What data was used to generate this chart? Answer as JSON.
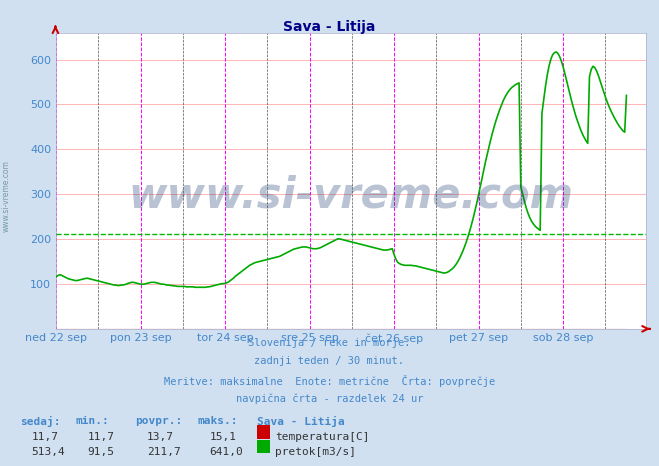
{
  "title": "Sava - Litija",
  "bg_color": "#d0e0f0",
  "plot_bg_color": "#ffffff",
  "grid_h_color": "#ffaaaa",
  "grid_v_color": "#ffaaaa",
  "vline_magenta": "#ff00ff",
  "vline_black": "#555555",
  "avg_line_color": "#00bb00",
  "avg_line_value": 211.7,
  "flow_line_color": "#00aa00",
  "temp_line_color": "#cc0000",
  "arrow_color": "#cc0000",
  "ylim": [
    0,
    660
  ],
  "yticks": [
    100,
    200,
    300,
    400,
    500,
    600
  ],
  "xlim": [
    0,
    335
  ],
  "total_points": 336,
  "points_per_day": 48,
  "x_tick_positions": [
    0,
    48,
    96,
    144,
    192,
    240,
    288
  ],
  "x_tick_labels": [
    "ned 22 sep",
    "pon 23 sep",
    "tor 24 sep",
    "sre 25 sep",
    "čet 26 sep",
    "pet 27 sep",
    "sob 28 sep"
  ],
  "magenta_vlines": [
    0,
    48,
    96,
    144,
    192,
    240,
    288,
    335
  ],
  "black_vlines": [
    24,
    72,
    120,
    168,
    216,
    264,
    312
  ],
  "title_color": "#000088",
  "title_fontsize": 10,
  "tick_color": "#4488cc",
  "tick_fontsize": 8,
  "watermark": "www.si-vreme.com",
  "watermark_color": "#1a3a6e",
  "watermark_alpha": 0.3,
  "watermark_fontsize": 30,
  "subtitle_color": "#4488cc",
  "subtitle_fontsize": 7.5,
  "subtitle_lines": [
    "Slovenija / reke in morje.",
    "zadnji teden / 30 minut.",
    "Meritve: maksimalne  Enote: metrične  Črta: povprečje",
    "navpična črta - razdelek 24 ur"
  ],
  "sivreme_color": "#7799aa",
  "sivreme_fontsize": 5.5,
  "table_header": [
    "sedaj:",
    "min.:",
    "povpr.:",
    "maks.:",
    "Sava - Litija"
  ],
  "table_row1": [
    "11,7",
    "11,7",
    "13,7",
    "15,1",
    "temperatura[C]"
  ],
  "table_row1_color": "#cc0000",
  "table_row2": [
    "513,4",
    "91,5",
    "211,7",
    "641,0",
    "pretok[m3/s]"
  ],
  "table_row2_color": "#00aa00",
  "table_color": "#333333",
  "table_header_color": "#4488cc",
  "table_fontsize": 8,
  "flow_data": [
    115,
    118,
    120,
    119,
    117,
    115,
    113,
    111,
    110,
    109,
    108,
    107,
    107,
    108,
    109,
    110,
    111,
    112,
    112,
    111,
    110,
    109,
    108,
    107,
    106,
    105,
    104,
    103,
    102,
    101,
    100,
    99,
    98,
    97,
    97,
    96,
    96,
    97,
    97,
    98,
    99,
    101,
    102,
    103,
    103,
    102,
    101,
    100,
    99,
    99,
    99,
    100,
    101,
    102,
    103,
    103,
    103,
    102,
    101,
    100,
    99,
    99,
    98,
    97,
    97,
    96,
    96,
    95,
    95,
    94,
    94,
    94,
    94,
    94,
    93,
    93,
    93,
    93,
    93,
    92,
    92,
    92,
    92,
    92,
    92,
    92,
    93,
    93,
    94,
    95,
    96,
    97,
    98,
    99,
    100,
    100,
    101,
    102,
    104,
    107,
    110,
    113,
    117,
    120,
    123,
    126,
    129,
    132,
    135,
    138,
    141,
    143,
    145,
    147,
    148,
    149,
    150,
    151,
    152,
    153,
    154,
    155,
    156,
    157,
    158,
    159,
    160,
    161,
    163,
    165,
    167,
    169,
    171,
    173,
    175,
    177,
    178,
    179,
    180,
    181,
    182,
    182,
    182,
    181,
    180,
    179,
    178,
    178,
    178,
    179,
    180,
    182,
    184,
    186,
    188,
    190,
    192,
    194,
    196,
    198,
    200,
    200,
    199,
    198,
    197,
    196,
    195,
    194,
    193,
    192,
    191,
    190,
    189,
    188,
    187,
    186,
    185,
    184,
    183,
    182,
    181,
    180,
    179,
    178,
    177,
    176,
    175,
    175,
    175,
    176,
    177,
    178,
    165,
    155,
    148,
    145,
    143,
    142,
    141,
    141,
    141,
    141,
    141,
    140,
    140,
    139,
    138,
    137,
    136,
    135,
    134,
    133,
    132,
    131,
    130,
    129,
    128,
    127,
    126,
    125,
    124,
    124,
    125,
    127,
    130,
    133,
    137,
    142,
    148,
    155,
    163,
    172,
    182,
    193,
    205,
    218,
    232,
    247,
    263,
    280,
    298,
    317,
    336,
    355,
    373,
    390,
    407,
    423,
    438,
    452,
    465,
    477,
    488,
    498,
    508,
    516,
    523,
    529,
    534,
    538,
    541,
    544,
    546,
    548,
    316,
    300,
    285,
    270,
    258,
    248,
    240,
    234,
    229,
    225,
    222,
    219,
    480,
    510,
    540,
    565,
    585,
    600,
    610,
    615,
    617,
    614,
    607,
    597,
    584,
    569,
    553,
    537,
    521,
    505,
    491,
    477,
    465,
    454,
    443,
    434,
    426,
    419,
    413,
    562,
    578,
    585,
    582,
    575,
    565,
    553,
    541,
    529,
    517,
    506,
    496,
    487,
    479,
    471,
    464,
    457,
    451,
    446,
    441,
    438,
    520
  ]
}
